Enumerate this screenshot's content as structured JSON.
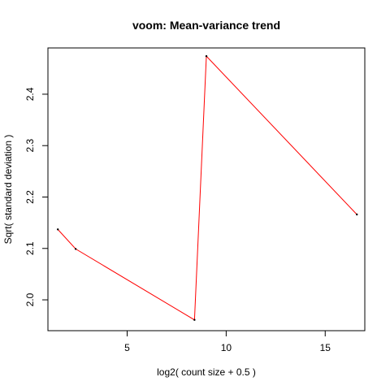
{
  "chart_data": {
    "type": "line",
    "title": "voom: Mean-variance trend",
    "xlabel": "log2( count size + 0.5 )",
    "ylabel": "Sqrt( standard deviation )",
    "xlim": [
      1.0,
      17.0
    ],
    "ylim": [
      1.94,
      2.49
    ],
    "xticks": [
      5,
      10,
      15
    ],
    "yticks": [
      2.0,
      2.1,
      2.2,
      2.3,
      2.4
    ],
    "grid": false,
    "series": [
      {
        "x": [
          1.5,
          2.4,
          8.4,
          9.0,
          16.6
        ],
        "y": [
          2.137,
          2.099,
          1.961,
          2.474,
          2.166
        ],
        "line_color": "#ff0000",
        "point_color": "#000000"
      }
    ]
  }
}
